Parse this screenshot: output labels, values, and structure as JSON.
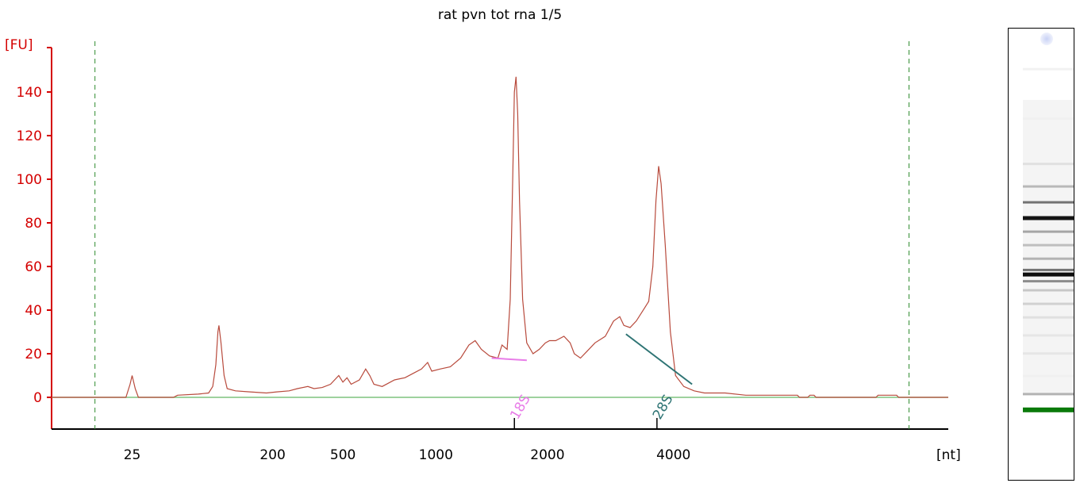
{
  "chart_data": {
    "type": "line",
    "title": "rat pvn tot rna 1/5",
    "ylabel": "[FU]",
    "xlabel": "[nt]",
    "ylim": [
      -15,
      155
    ],
    "y_ticks": [
      0,
      20,
      40,
      60,
      80,
      100,
      120,
      140
    ],
    "x_tick_labels": [
      "25",
      "200",
      "500",
      "1000",
      "2000",
      "4000"
    ],
    "x_tick_times": [
      22.3,
      29.1,
      32.5,
      37.0,
      42.4,
      48.5
    ],
    "time_range": [
      18.4,
      61.8
    ],
    "marker_lines_time": [
      20.5,
      59.9
    ],
    "grid": false,
    "colors": {
      "axis_y": "#d40000",
      "trace": "#b84a3c",
      "baseline": "#7fc47f",
      "marker": "#2e8b2e",
      "peak_18s": "#e87de8",
      "peak_28s": "#2e7474"
    },
    "series": [
      {
        "points": [
          [
            18.4,
            0
          ],
          [
            22.0,
            0
          ],
          [
            22.2,
            6
          ],
          [
            22.3,
            10
          ],
          [
            22.45,
            4
          ],
          [
            22.6,
            0
          ],
          [
            24.3,
            0
          ],
          [
            24.5,
            1
          ],
          [
            25.5,
            1.5
          ],
          [
            26.0,
            2
          ],
          [
            26.2,
            5
          ],
          [
            26.35,
            15
          ],
          [
            26.45,
            30
          ],
          [
            26.5,
            33
          ],
          [
            26.6,
            25
          ],
          [
            26.75,
            10
          ],
          [
            26.9,
            4
          ],
          [
            27.3,
            3
          ],
          [
            28.0,
            2.5
          ],
          [
            28.8,
            2
          ],
          [
            29.3,
            2.5
          ],
          [
            29.9,
            3
          ],
          [
            30.3,
            4
          ],
          [
            30.8,
            5
          ],
          [
            31.1,
            4
          ],
          [
            31.5,
            4.5
          ],
          [
            31.9,
            6
          ],
          [
            32.3,
            10
          ],
          [
            32.5,
            7
          ],
          [
            32.7,
            9
          ],
          [
            32.9,
            6
          ],
          [
            33.3,
            8
          ],
          [
            33.6,
            13
          ],
          [
            33.8,
            10
          ],
          [
            34.0,
            6
          ],
          [
            34.4,
            5
          ],
          [
            35.0,
            8
          ],
          [
            35.5,
            9
          ],
          [
            35.9,
            11
          ],
          [
            36.3,
            13
          ],
          [
            36.6,
            16
          ],
          [
            36.8,
            12
          ],
          [
            37.2,
            13
          ],
          [
            37.7,
            14
          ],
          [
            38.2,
            18
          ],
          [
            38.6,
            24
          ],
          [
            38.9,
            26
          ],
          [
            39.2,
            22
          ],
          [
            39.6,
            19
          ],
          [
            40.0,
            18
          ],
          [
            40.2,
            24
          ],
          [
            40.45,
            22
          ],
          [
            40.6,
            45
          ],
          [
            40.72,
            100
          ],
          [
            40.8,
            140
          ],
          [
            40.88,
            147
          ],
          [
            40.96,
            130
          ],
          [
            41.05,
            90
          ],
          [
            41.2,
            45
          ],
          [
            41.4,
            25
          ],
          [
            41.7,
            20
          ],
          [
            42.0,
            22
          ],
          [
            42.3,
            25
          ],
          [
            42.5,
            26
          ],
          [
            42.8,
            26
          ],
          [
            43.2,
            28
          ],
          [
            43.5,
            25
          ],
          [
            43.7,
            20
          ],
          [
            44.0,
            18
          ],
          [
            44.3,
            21
          ],
          [
            44.7,
            25
          ],
          [
            45.2,
            28
          ],
          [
            45.6,
            35
          ],
          [
            45.9,
            37
          ],
          [
            46.1,
            33
          ],
          [
            46.4,
            32
          ],
          [
            46.7,
            35
          ],
          [
            47.1,
            41
          ],
          [
            47.3,
            44
          ],
          [
            47.5,
            60
          ],
          [
            47.65,
            90
          ],
          [
            47.78,
            106
          ],
          [
            47.9,
            98
          ],
          [
            48.1,
            70
          ],
          [
            48.35,
            30
          ],
          [
            48.6,
            10
          ],
          [
            49.0,
            5
          ],
          [
            49.5,
            3
          ],
          [
            50.0,
            2
          ],
          [
            51.0,
            2
          ],
          [
            52.0,
            1
          ],
          [
            53.0,
            1
          ],
          [
            54.0,
            1
          ],
          [
            54.5,
            1
          ],
          [
            54.6,
            0
          ],
          [
            55.0,
            0
          ],
          [
            55.1,
            1
          ],
          [
            55.3,
            1
          ],
          [
            55.4,
            0
          ],
          [
            58.3,
            0
          ],
          [
            58.4,
            1
          ],
          [
            59.3,
            1
          ],
          [
            59.4,
            0
          ],
          [
            61.8,
            0
          ]
        ]
      }
    ],
    "peaks": [
      {
        "label": "18S",
        "tick_time": 40.8,
        "base_from": [
          39.7,
          18
        ],
        "base_to": [
          41.4,
          17
        ]
      },
      {
        "label": "28S",
        "tick_time": 47.7,
        "base_from": [
          46.2,
          29
        ],
        "base_to": [
          49.4,
          6
        ]
      }
    ],
    "gel_bands": [
      {
        "pos": 0.09,
        "intensity": 0.05
      },
      {
        "pos": 0.2,
        "intensity": 0.06
      },
      {
        "pos": 0.3,
        "intensity": 0.12
      },
      {
        "pos": 0.35,
        "intensity": 0.28
      },
      {
        "pos": 0.385,
        "intensity": 0.55
      },
      {
        "pos": 0.42,
        "intensity": 0.92
      },
      {
        "pos": 0.45,
        "intensity": 0.35
      },
      {
        "pos": 0.48,
        "intensity": 0.25
      },
      {
        "pos": 0.51,
        "intensity": 0.3
      },
      {
        "pos": 0.535,
        "intensity": 0.55
      },
      {
        "pos": 0.545,
        "intensity": 0.95
      },
      {
        "pos": 0.56,
        "intensity": 0.45
      },
      {
        "pos": 0.58,
        "intensity": 0.22
      },
      {
        "pos": 0.61,
        "intensity": 0.18
      },
      {
        "pos": 0.64,
        "intensity": 0.12
      },
      {
        "pos": 0.68,
        "intensity": 0.1
      },
      {
        "pos": 0.72,
        "intensity": 0.1
      },
      {
        "pos": 0.77,
        "intensity": 0.06
      },
      {
        "pos": 0.81,
        "intensity": 0.3
      }
    ],
    "gel_marker": {
      "pos": 0.845,
      "color": "#0a7a0a"
    },
    "gel_well": {
      "color": "#c9d2f5"
    }
  }
}
